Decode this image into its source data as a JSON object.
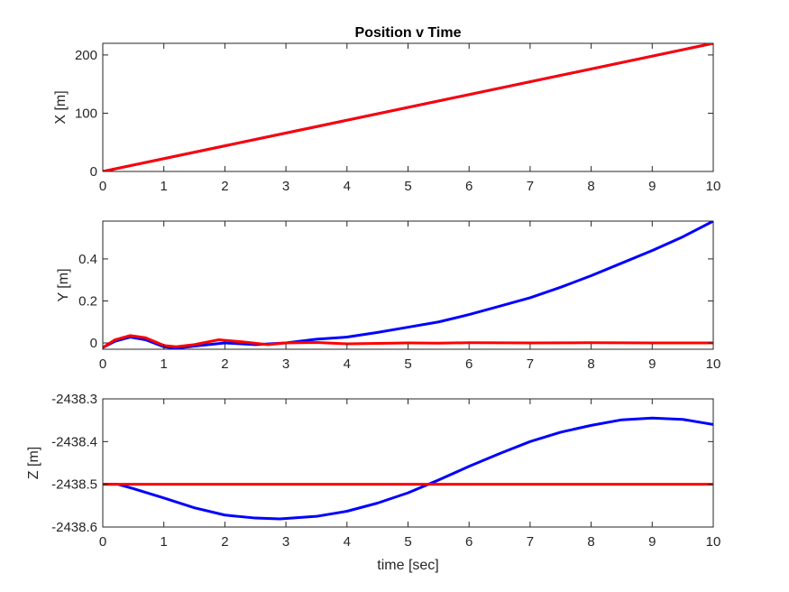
{
  "chart_data": [
    {
      "type": "line",
      "title": "Position v Time",
      "xlabel": "",
      "ylabel": "X [m]",
      "xlim": [
        0,
        10
      ],
      "ylim": [
        0,
        220
      ],
      "xticks": [
        "0",
        "1",
        "2",
        "3",
        "4",
        "5",
        "6",
        "7",
        "8",
        "9",
        "10"
      ],
      "yticks": [
        0,
        100,
        200
      ],
      "ytick_labels": [
        "0",
        "100",
        "200"
      ],
      "grid": false,
      "legend": "none",
      "series": [
        {
          "color": "#0000ff",
          "x": [
            0,
            10
          ],
          "y": [
            0,
            220
          ]
        },
        {
          "color": "#ff0000",
          "x": [
            0,
            10
          ],
          "y": [
            0,
            220
          ]
        }
      ]
    },
    {
      "type": "line",
      "title": "",
      "xlabel": "",
      "ylabel": "Y [m]",
      "xlim": [
        0,
        10
      ],
      "ylim": [
        -0.03,
        0.58
      ],
      "xticks": [
        "0",
        "1",
        "2",
        "3",
        "4",
        "5",
        "6",
        "7",
        "8",
        "9",
        "10"
      ],
      "yticks": [
        0,
        0.2,
        0.4
      ],
      "ytick_labels": [
        "0",
        "0.2",
        "0.4"
      ],
      "grid": false,
      "legend": "none",
      "series": [
        {
          "color": "#0000ff",
          "x": [
            0,
            0.2,
            0.45,
            0.7,
            1.0,
            1.2,
            1.5,
            2.0,
            2.5,
            3.0,
            3.5,
            4.0,
            4.5,
            5.0,
            5.5,
            6.0,
            6.5,
            7.0,
            7.5,
            8.0,
            8.5,
            9.0,
            9.5,
            10.0
          ],
          "y": [
            -0.022,
            0.008,
            0.028,
            0.015,
            -0.018,
            -0.025,
            -0.015,
            0.0,
            -0.008,
            0.0,
            0.018,
            0.028,
            0.05,
            0.075,
            0.1,
            0.135,
            0.175,
            0.215,
            0.265,
            0.32,
            0.38,
            0.44,
            0.505,
            0.58
          ]
        },
        {
          "color": "#ff0000",
          "x": [
            0,
            0.2,
            0.45,
            0.7,
            1.0,
            1.2,
            1.5,
            1.9,
            2.3,
            2.7,
            3.0,
            3.5,
            4.0,
            4.5,
            5.0,
            5.5,
            6.0,
            7.0,
            8.0,
            9.0,
            10.0
          ],
          "y": [
            -0.022,
            0.015,
            0.035,
            0.025,
            -0.012,
            -0.018,
            -0.008,
            0.015,
            0.005,
            -0.008,
            0.0,
            0.002,
            -0.004,
            -0.002,
            0.0,
            -0.001,
            0.001,
            0.0,
            0.001,
            0.0,
            0.0
          ]
        }
      ]
    },
    {
      "type": "line",
      "title": "",
      "xlabel": "time [sec]",
      "ylabel": "Z [m]",
      "xlim": [
        0,
        10
      ],
      "ylim": [
        -2438.6,
        -2438.3
      ],
      "xticks": [
        "0",
        "1",
        "2",
        "3",
        "4",
        "5",
        "6",
        "7",
        "8",
        "9",
        "10"
      ],
      "yticks": [
        -2438.6,
        -2438.5,
        -2438.4,
        -2438.3
      ],
      "ytick_labels": [
        "-2438.6",
        "-2438.5",
        "-2438.4",
        "-2438.3"
      ],
      "grid": false,
      "legend": "none",
      "series": [
        {
          "color": "#0000ff",
          "x": [
            0,
            0.25,
            0.5,
            1.0,
            1.5,
            2.0,
            2.5,
            2.9,
            3.5,
            4.0,
            4.5,
            5.0,
            5.5,
            6.0,
            6.5,
            7.0,
            7.5,
            8.0,
            8.5,
            9.0,
            9.5,
            10.0
          ],
          "y": [
            -2438.5,
            -2438.5,
            -2438.51,
            -2438.532,
            -2438.555,
            -2438.572,
            -2438.579,
            -2438.581,
            -2438.575,
            -2438.563,
            -2438.544,
            -2438.52,
            -2438.49,
            -2438.458,
            -2438.428,
            -2438.4,
            -2438.378,
            -2438.362,
            -2438.349,
            -2438.345,
            -2438.348,
            -2438.36
          ]
        },
        {
          "color": "#ff0000",
          "x": [
            0,
            10
          ],
          "y": [
            -2438.5,
            -2438.5
          ]
        }
      ]
    }
  ]
}
